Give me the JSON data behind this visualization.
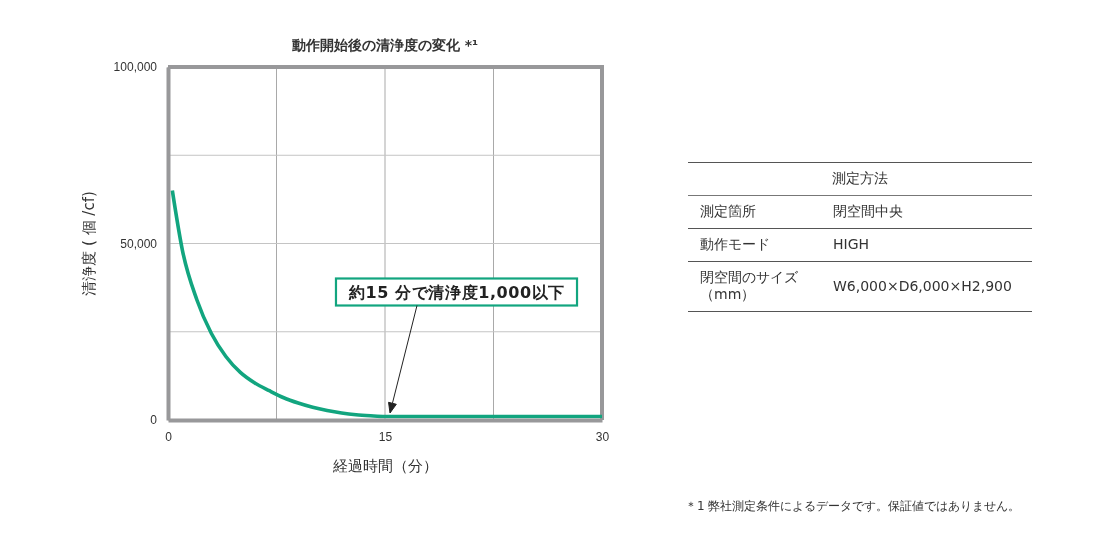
{
  "chart_data": [
    {
      "type": "line",
      "title": "動作開始後の清浄度の変化 *¹",
      "xlabel": "経過時間（分）",
      "ylabel": "清浄度 ( 個 /cf)",
      "x": [
        0.3,
        1,
        2,
        3,
        4,
        5,
        6,
        7,
        8,
        9,
        10,
        11,
        12,
        13,
        14,
        15,
        20,
        25,
        30
      ],
      "series": [
        {
          "color": "#12a57f",
          "values": [
            65000,
            48000,
            34000,
            24500,
            18000,
            13500,
            10500,
            8300,
            6300,
            4800,
            3600,
            2700,
            2000,
            1500,
            1200,
            1000,
            1000,
            1000,
            1000
          ]
        }
      ],
      "xlim": [
        0,
        30
      ],
      "ylim": [
        0,
        100000
      ],
      "xticks": [
        0,
        {
          "value": 7.5,
          "label": null
        },
        15,
        {
          "value": 22.5,
          "label": null
        },
        30
      ],
      "yticks": [
        0,
        {
          "value": 25000,
          "label": null
        },
        {
          "value": 50000,
          "label": "50,000"
        },
        {
          "value": 75000,
          "label": null
        },
        {
          "value": 100000,
          "label": "100,000"
        }
      ],
      "grid": true,
      "annotations": [
        "約15 分で清浄度1,000以下",
        "＊1 弊社測定条件によるデータです。保証値ではありません。"
      ]
    },
    {
      "type": "other",
      "title": "測定方法",
      "annotations": [
        "測定箇所",
        "閉空間中央",
        "動作モード",
        "HIGH",
        "閉空間のサイズ（mm）",
        "W6,000×D6,000×H2,900"
      ]
    }
  ]
}
